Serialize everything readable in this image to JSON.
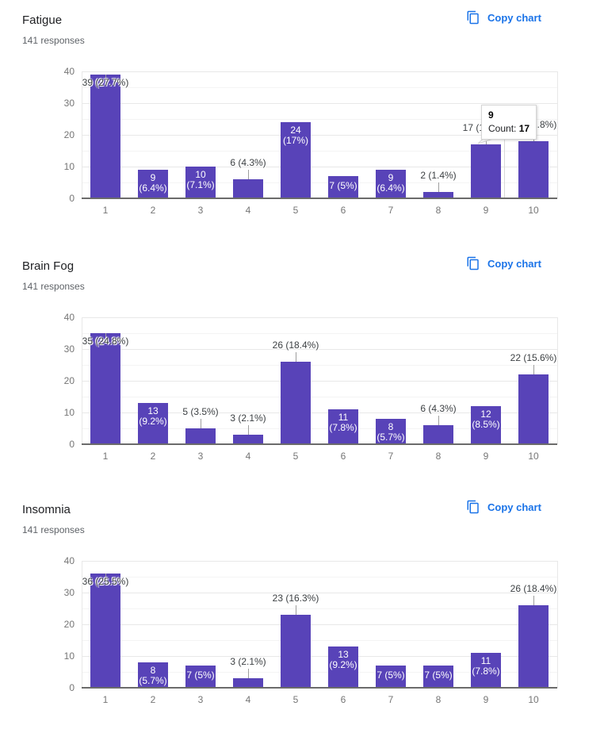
{
  "page": {
    "background": "#ffffff"
  },
  "copy_button": {
    "label": "Copy chart",
    "icon": "copy-icon",
    "color": "#1a73e8"
  },
  "chart_data": [
    {
      "type": "bar",
      "title": "Fatigue",
      "subtitle": "141 responses",
      "xlabel": "",
      "ylabel": "",
      "ylim": [
        0,
        40
      ],
      "yticks": [
        0,
        10,
        20,
        30,
        40
      ],
      "grid": true,
      "legend": "none",
      "bar_color": "#5843b8",
      "categories": [
        "1",
        "2",
        "3",
        "4",
        "5",
        "6",
        "7",
        "8",
        "9",
        "10"
      ],
      "values": [
        39,
        9,
        10,
        6,
        24,
        7,
        9,
        2,
        17,
        18
      ],
      "labels": [
        "39 (27.7%)",
        "9 (6.4%)",
        "10 (7.1%)",
        "6 (4.3%)",
        "24 (17%)",
        "7 (5%)",
        "9 (6.4%)",
        "2 (1.4%)",
        "17 (12.1%)",
        "18 (12.8%)"
      ],
      "label_modes": [
        "over",
        "inside2",
        "inside2",
        "outside",
        "inside2",
        "inside1",
        "inside2",
        "outside",
        "outside",
        "outside"
      ],
      "tooltip": {
        "category": "9",
        "count_label": "Count:",
        "count_value": "17",
        "bar_index": 8
      }
    },
    {
      "type": "bar",
      "title": "Brain Fog",
      "subtitle": "141 responses",
      "xlabel": "",
      "ylabel": "",
      "ylim": [
        0,
        40
      ],
      "yticks": [
        0,
        10,
        20,
        30,
        40
      ],
      "grid": true,
      "legend": "none",
      "bar_color": "#5843b8",
      "categories": [
        "1",
        "2",
        "3",
        "4",
        "5",
        "6",
        "7",
        "8",
        "9",
        "10"
      ],
      "values": [
        35,
        13,
        5,
        3,
        26,
        11,
        8,
        6,
        12,
        22
      ],
      "labels": [
        "35 (24.8%)",
        "13 (9.2%)",
        "5 (3.5%)",
        "3 (2.1%)",
        "26 (18.4%)",
        "11 (7.8%)",
        "8 (5.7%)",
        "6 (4.3%)",
        "12 (8.5%)",
        "22 (15.6%)"
      ],
      "label_modes": [
        "over",
        "inside2",
        "outside",
        "outside",
        "outside",
        "inside2",
        "inside2",
        "outside",
        "inside2",
        "outside"
      ]
    },
    {
      "type": "bar",
      "title": "Insomnia",
      "subtitle": "141 responses",
      "xlabel": "",
      "ylabel": "",
      "ylim": [
        0,
        40
      ],
      "yticks": [
        0,
        10,
        20,
        30,
        40
      ],
      "grid": true,
      "legend": "none",
      "bar_color": "#5843b8",
      "categories": [
        "1",
        "2",
        "3",
        "4",
        "5",
        "6",
        "7",
        "8",
        "9",
        "10"
      ],
      "values": [
        36,
        8,
        7,
        3,
        23,
        13,
        7,
        7,
        11,
        26
      ],
      "labels": [
        "36 (25.5%)",
        "8 (5.7%)",
        "7 (5%)",
        "3 (2.1%)",
        "23 (16.3%)",
        "13 (9.2%)",
        "7 (5%)",
        "7 (5%)",
        "11 (7.8%)",
        "26 (18.4%)"
      ],
      "label_modes": [
        "over",
        "inside2",
        "inside1",
        "outside",
        "outside",
        "inside2",
        "inside1",
        "inside1",
        "inside2",
        "outside"
      ]
    }
  ]
}
